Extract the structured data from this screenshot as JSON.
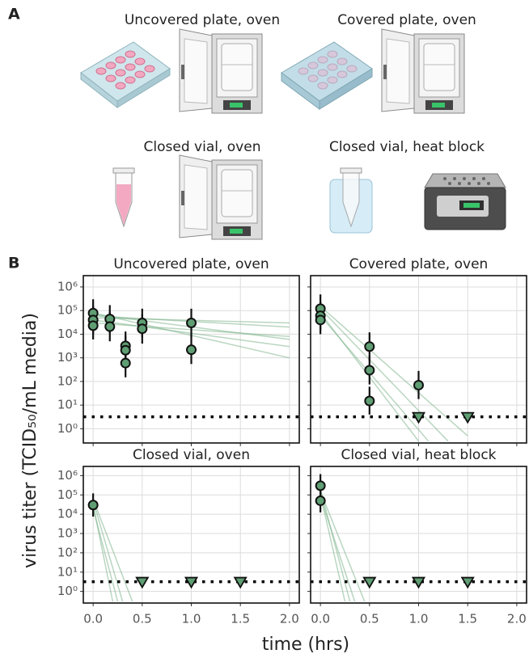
{
  "panel_labels": [
    "A",
    "B"
  ],
  "illustrations": [
    "Uncovered plate, oven",
    "Covered plate, oven",
    "Closed vial, oven",
    "Closed vial, heat block"
  ],
  "y_axis_label": "virus titer (TCID₅₀/mL media)",
  "x_axis_label": "time (hrs)",
  "chart_data": [
    {
      "type": "scatter",
      "title": "Uncovered plate, oven",
      "log_y": true,
      "grid": true,
      "xlim": [
        -0.1,
        2.1
      ],
      "xticks": [
        0,
        0.5,
        1,
        1.5,
        2
      ],
      "ylim": [
        0.25,
        3000000
      ],
      "yticks": [
        {
          "value": 1,
          "label": "10⁰"
        },
        {
          "value": 10,
          "label": "10¹"
        },
        {
          "value": 100,
          "label": "10²"
        },
        {
          "value": 1000,
          "label": "10³"
        },
        {
          "value": 10000,
          "label": "10⁴"
        },
        {
          "value": 100000,
          "label": "10⁵"
        },
        {
          "value": 1000000,
          "label": "10⁶"
        }
      ],
      "detection_limit": 3.2,
      "observed": {
        "color": "#5f9e73",
        "x": [
          0,
          0,
          0,
          0.17,
          0.17,
          0.33,
          0.33,
          0.33,
          0.5,
          0.5,
          1,
          1
        ],
        "values": [
          78000,
          40000,
          23000,
          44000,
          21000,
          3200,
          2100,
          600,
          30000,
          17000,
          30000,
          2200
        ],
        "ci_low": [
          20000,
          10000,
          6000,
          11000,
          5000,
          800,
          500,
          150,
          7500,
          4000,
          7500,
          550
        ],
        "ci_high": [
          300000,
          160000,
          90000,
          170000,
          85000,
          13000,
          8500,
          2400,
          120000,
          68000,
          120000,
          9000
        ]
      },
      "below_limit": {
        "x": [],
        "values": []
      },
      "fits": {
        "color": "#7fb58d",
        "lines": [
          {
            "x": [
              0,
              2
            ],
            "values": [
              60000,
              20000
            ]
          },
          {
            "x": [
              0,
              2
            ],
            "values": [
              40000,
              3000
            ]
          },
          {
            "x": [
              0,
              2
            ],
            "values": [
              80000,
              1000
            ]
          },
          {
            "x": [
              0,
              2
            ],
            "values": [
              30000,
              8000
            ]
          },
          {
            "x": [
              0,
              2
            ],
            "values": [
              50000,
              30000
            ]
          },
          {
            "x": [
              0,
              2
            ],
            "values": [
              70000,
              6000
            ]
          }
        ]
      }
    },
    {
      "type": "scatter",
      "title": "Covered plate, oven",
      "log_y": true,
      "grid": true,
      "xlim": [
        -0.1,
        2.1
      ],
      "xticks": [
        0,
        0.5,
        1,
        1.5,
        2
      ],
      "ylim": [
        0.25,
        3000000
      ],
      "yticks": [
        1,
        10,
        100,
        1000,
        10000,
        100000,
        1000000
      ],
      "detection_limit": 3.2,
      "observed": {
        "color": "#5f9e73",
        "x": [
          0,
          0,
          0,
          0.5,
          0.5,
          0.5,
          1
        ],
        "values": [
          120000,
          60000,
          40000,
          3000,
          300,
          15,
          70
        ],
        "ci_low": [
          30000,
          15000,
          10000,
          750,
          75,
          4,
          18
        ],
        "ci_high": [
          480000,
          240000,
          160000,
          12000,
          1200,
          60,
          280
        ]
      },
      "below_limit": {
        "x": [
          1,
          1.5
        ],
        "values": [
          3.2,
          3.2
        ]
      },
      "fits": {
        "color": "#7fb58d",
        "lines": [
          {
            "x": [
              0,
              1
            ],
            "values": [
              80000,
              0.3
            ]
          },
          {
            "x": [
              0,
              1.3
            ],
            "values": [
              120000,
              0.3
            ]
          },
          {
            "x": [
              0,
              1.1
            ],
            "values": [
              60000,
              0.3
            ]
          },
          {
            "x": [
              0,
              1.5
            ],
            "values": [
              150000,
              0.5
            ]
          }
        ]
      }
    },
    {
      "type": "scatter",
      "title": "Closed vial, oven",
      "log_y": true,
      "grid": true,
      "xlim": [
        -0.1,
        2.1
      ],
      "xticks": [
        {
          "value": 0,
          "label": "0.0"
        },
        {
          "value": 0.5,
          "label": "0.5"
        },
        {
          "value": 1,
          "label": "1.0"
        },
        {
          "value": 1.5,
          "label": "1.5"
        },
        {
          "value": 2,
          "label": "2.0"
        }
      ],
      "ylim": [
        0.25,
        3000000
      ],
      "yticks": [
        {
          "value": 1,
          "label": "10⁰"
        },
        {
          "value": 10,
          "label": "10¹"
        },
        {
          "value": 100,
          "label": "10²"
        },
        {
          "value": 1000,
          "label": "10³"
        },
        {
          "value": 10000,
          "label": "10⁴"
        },
        {
          "value": 100000,
          "label": "10⁵"
        },
        {
          "value": 1000000,
          "label": "10⁶"
        }
      ],
      "detection_limit": 3.2,
      "observed": {
        "color": "#5f9e73",
        "x": [
          0
        ],
        "values": [
          30000
        ],
        "ci_low": [
          7500
        ],
        "ci_high": [
          120000
        ]
      },
      "below_limit": {
        "x": [
          0.5,
          1,
          1.5
        ],
        "values": [
          3.2,
          3.2,
          3.2
        ]
      },
      "fits": {
        "color": "#7fb58d",
        "lines": [
          {
            "x": [
              0,
              0.3
            ],
            "values": [
              50000,
              0.3
            ]
          },
          {
            "x": [
              0,
              0.2
            ],
            "values": [
              30000,
              0.3
            ]
          },
          {
            "x": [
              0,
              0.4
            ],
            "values": [
              60000,
              0.3
            ]
          },
          {
            "x": [
              0,
              0.25
            ],
            "values": [
              20000,
              0.3
            ]
          }
        ]
      }
    },
    {
      "type": "scatter",
      "title": "Closed vial, heat block",
      "log_y": true,
      "grid": true,
      "xlim": [
        -0.1,
        2.1
      ],
      "xticks": [
        {
          "value": 0,
          "label": "0.0"
        },
        {
          "value": 0.5,
          "label": "0.5"
        },
        {
          "value": 1,
          "label": "1.0"
        },
        {
          "value": 1.5,
          "label": "1.5"
        },
        {
          "value": 2,
          "label": "2.0"
        }
      ],
      "ylim": [
        0.25,
        3000000
      ],
      "yticks": [
        1,
        10,
        100,
        1000,
        10000,
        100000,
        1000000
      ],
      "detection_limit": 3.2,
      "observed": {
        "color": "#5f9e73",
        "x": [
          0,
          0
        ],
        "values": [
          300000,
          50000
        ],
        "ci_low": [
          75000,
          12500
        ],
        "ci_high": [
          1200000,
          200000
        ]
      },
      "below_limit": {
        "x": [
          0.5,
          1,
          1.5
        ],
        "values": [
          3.2,
          3.2,
          3.2
        ]
      },
      "fits": {
        "color": "#7fb58d",
        "lines": [
          {
            "x": [
              0,
              0.3
            ],
            "values": [
              200000,
              0.3
            ]
          },
          {
            "x": [
              0,
              0.45
            ],
            "values": [
              150000,
              0.3
            ]
          },
          {
            "x": [
              0,
              0.35
            ],
            "values": [
              80000,
              0.3
            ]
          },
          {
            "x": [
              0,
              0.25
            ],
            "values": [
              100000,
              0.3
            ]
          }
        ]
      }
    }
  ]
}
